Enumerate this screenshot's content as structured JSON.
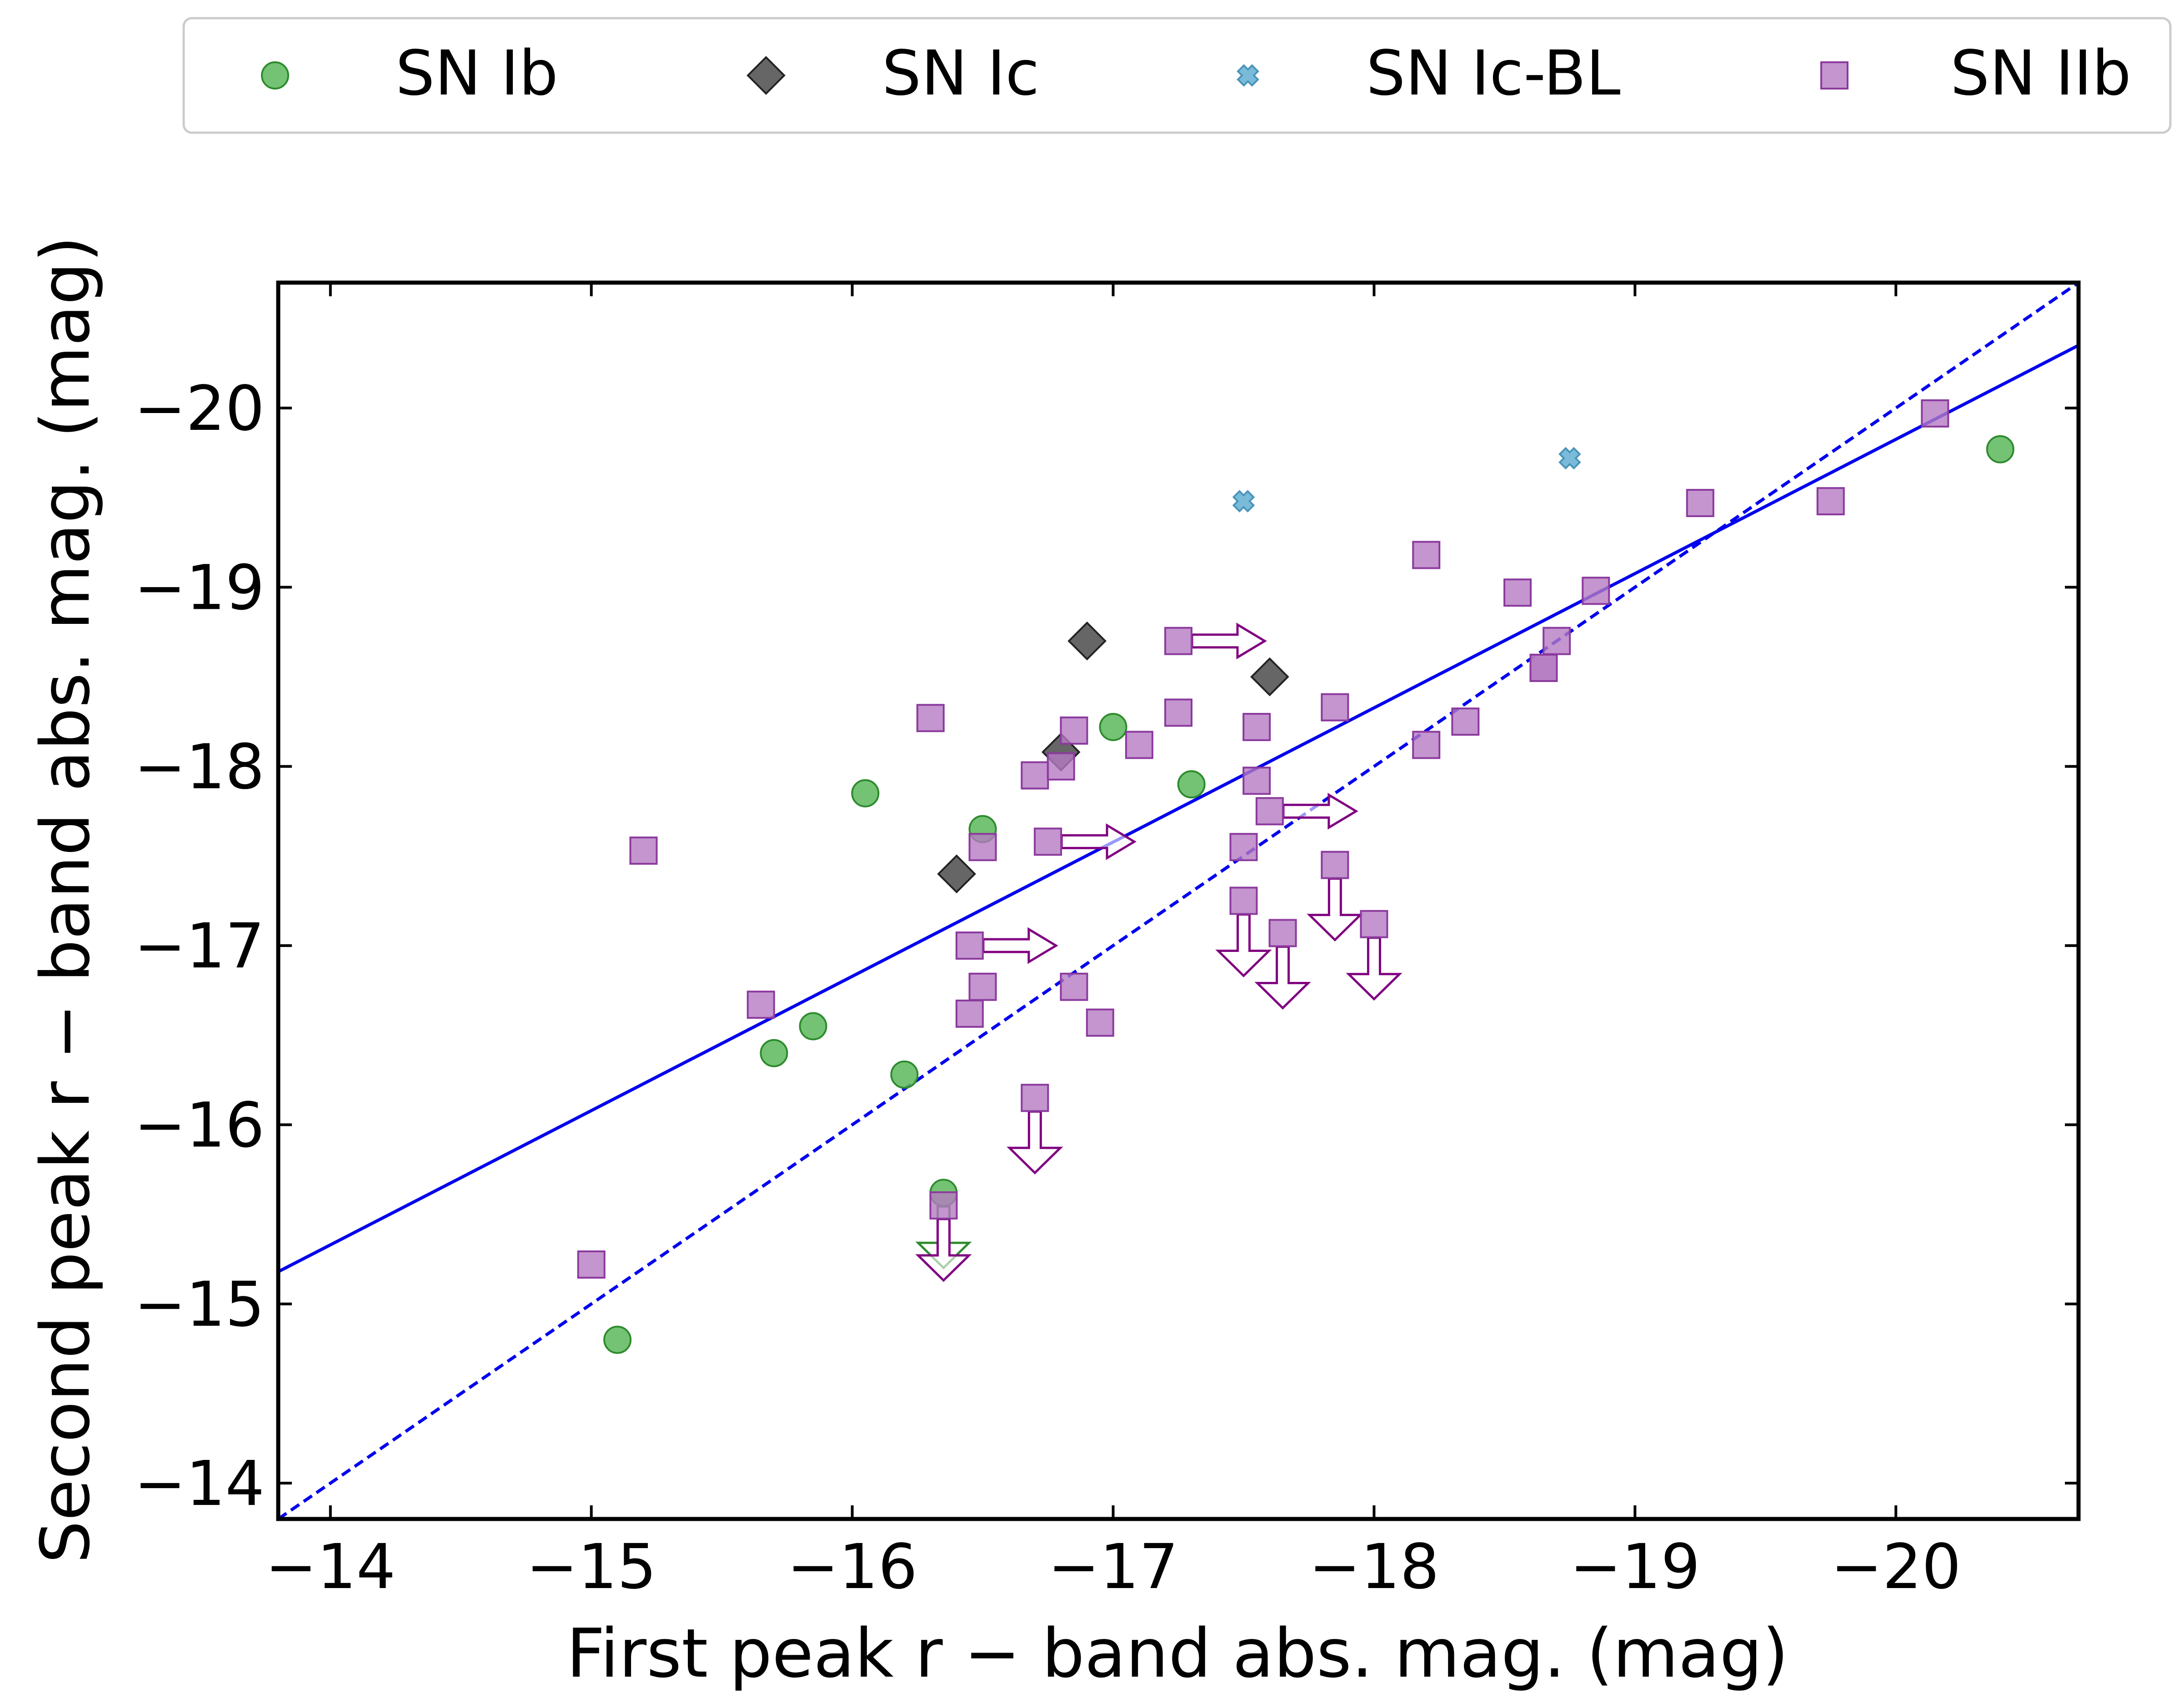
{
  "chart_data": {
    "type": "scatter",
    "xlabel": "First peak r − band abs. mag. (mag)",
    "ylabel": "Second peak r − band abs. mag. (mag)",
    "xlim": [
      -13.8,
      -20.7
    ],
    "ylim": [
      -13.8,
      -20.7
    ],
    "x_inverted": true,
    "y_inverted": true,
    "xticks": [
      -14,
      -15,
      -16,
      -17,
      -18,
      -19,
      -20
    ],
    "yticks": [
      -14,
      -15,
      -16,
      -17,
      -18,
      -19,
      -20
    ],
    "xtick_labels": [
      "−14",
      "−15",
      "−16",
      "−17",
      "−18",
      "−19",
      "−20"
    ],
    "ytick_labels": [
      "−14",
      "−15",
      "−16",
      "−17",
      "−18",
      "−19",
      "−20"
    ],
    "grid": false,
    "legend_position": "top, above plot",
    "colors": {
      "ib": "#5cb85c",
      "ib_edge": "#2e8b2e",
      "ic": "#555555",
      "icbl": "#6cb4d6",
      "iib": "#b57ac2",
      "iib_edge": "#8b3a9e",
      "arrow": "#800080",
      "fit_line": "#0000ee"
    },
    "series": [
      {
        "name": "SN Ib",
        "marker": "circle",
        "points": [
          {
            "x": -15.1,
            "y": -14.8
          },
          {
            "x": -15.7,
            "y": -16.4
          },
          {
            "x": -15.85,
            "y": -16.55
          },
          {
            "x": -16.05,
            "y": -17.85
          },
          {
            "x": -16.2,
            "y": -16.28
          },
          {
            "x": -16.35,
            "y": -15.62,
            "ul_y": true
          },
          {
            "x": -16.5,
            "y": -17.65
          },
          {
            "x": -17.0,
            "y": -18.22
          },
          {
            "x": -17.3,
            "y": -17.9
          },
          {
            "x": -20.4,
            "y": -19.77
          }
        ]
      },
      {
        "name": "SN Ic",
        "marker": "diamond",
        "points": [
          {
            "x": -16.4,
            "y": -17.4
          },
          {
            "x": -16.8,
            "y": -18.08
          },
          {
            "x": -16.9,
            "y": -18.7
          },
          {
            "x": -17.6,
            "y": -18.5
          }
        ]
      },
      {
        "name": "SN Ic-BL",
        "marker": "x",
        "points": [
          {
            "x": -17.5,
            "y": -19.48
          },
          {
            "x": -18.75,
            "y": -19.72
          }
        ]
      },
      {
        "name": "SN IIb",
        "marker": "square",
        "points": [
          {
            "x": -15.0,
            "y": -15.22
          },
          {
            "x": -15.2,
            "y": -17.53
          },
          {
            "x": -15.65,
            "y": -16.67
          },
          {
            "x": -16.3,
            "y": -18.27
          },
          {
            "x": -16.35,
            "y": -15.55,
            "ul_y": true
          },
          {
            "x": -16.45,
            "y": -16.62
          },
          {
            "x": -16.45,
            "y": -17.0,
            "ll_x": true
          },
          {
            "x": -16.5,
            "y": -17.55
          },
          {
            "x": -16.5,
            "y": -16.77
          },
          {
            "x": -16.7,
            "y": -16.15,
            "ul_y": true
          },
          {
            "x": -16.7,
            "y": -17.95
          },
          {
            "x": -16.75,
            "y": -17.58,
            "ll_x": true
          },
          {
            "x": -16.8,
            "y": -18.0
          },
          {
            "x": -16.85,
            "y": -18.2
          },
          {
            "x": -16.85,
            "y": -16.77
          },
          {
            "x": -16.95,
            "y": -16.57
          },
          {
            "x": -17.1,
            "y": -18.12
          },
          {
            "x": -17.25,
            "y": -18.3
          },
          {
            "x": -17.25,
            "y": -18.7,
            "ll_x": true
          },
          {
            "x": -17.5,
            "y": -17.55
          },
          {
            "x": -17.5,
            "y": -17.25,
            "ul_y": true
          },
          {
            "x": -17.55,
            "y": -17.92
          },
          {
            "x": -17.55,
            "y": -18.22
          },
          {
            "x": -17.6,
            "y": -17.75,
            "ll_x": true
          },
          {
            "x": -17.65,
            "y": -17.07,
            "ul_y": true
          },
          {
            "x": -17.85,
            "y": -17.45,
            "ul_y": true
          },
          {
            "x": -17.85,
            "y": -18.33
          },
          {
            "x": -18.0,
            "y": -17.12,
            "ul_y": true
          },
          {
            "x": -18.2,
            "y": -19.18
          },
          {
            "x": -18.2,
            "y": -18.12
          },
          {
            "x": -18.35,
            "y": -18.25
          },
          {
            "x": -18.55,
            "y": -18.97
          },
          {
            "x": -18.65,
            "y": -18.55
          },
          {
            "x": -18.65,
            "y": -18.55
          },
          {
            "x": -18.7,
            "y": -18.7
          },
          {
            "x": -18.85,
            "y": -18.98
          },
          {
            "x": -19.25,
            "y": -19.47
          },
          {
            "x": -19.75,
            "y": -19.48
          },
          {
            "x": -20.15,
            "y": -19.97
          }
        ]
      }
    ],
    "lines": [
      {
        "style": "solid",
        "points": [
          {
            "x": -13.8,
            "y": -15.18
          },
          {
            "x": -20.7,
            "y": -20.35
          }
        ]
      },
      {
        "style": "dashed",
        "points": [
          {
            "x": -13.8,
            "y": -13.8
          },
          {
            "x": -20.7,
            "y": -20.7
          }
        ]
      }
    ]
  }
}
